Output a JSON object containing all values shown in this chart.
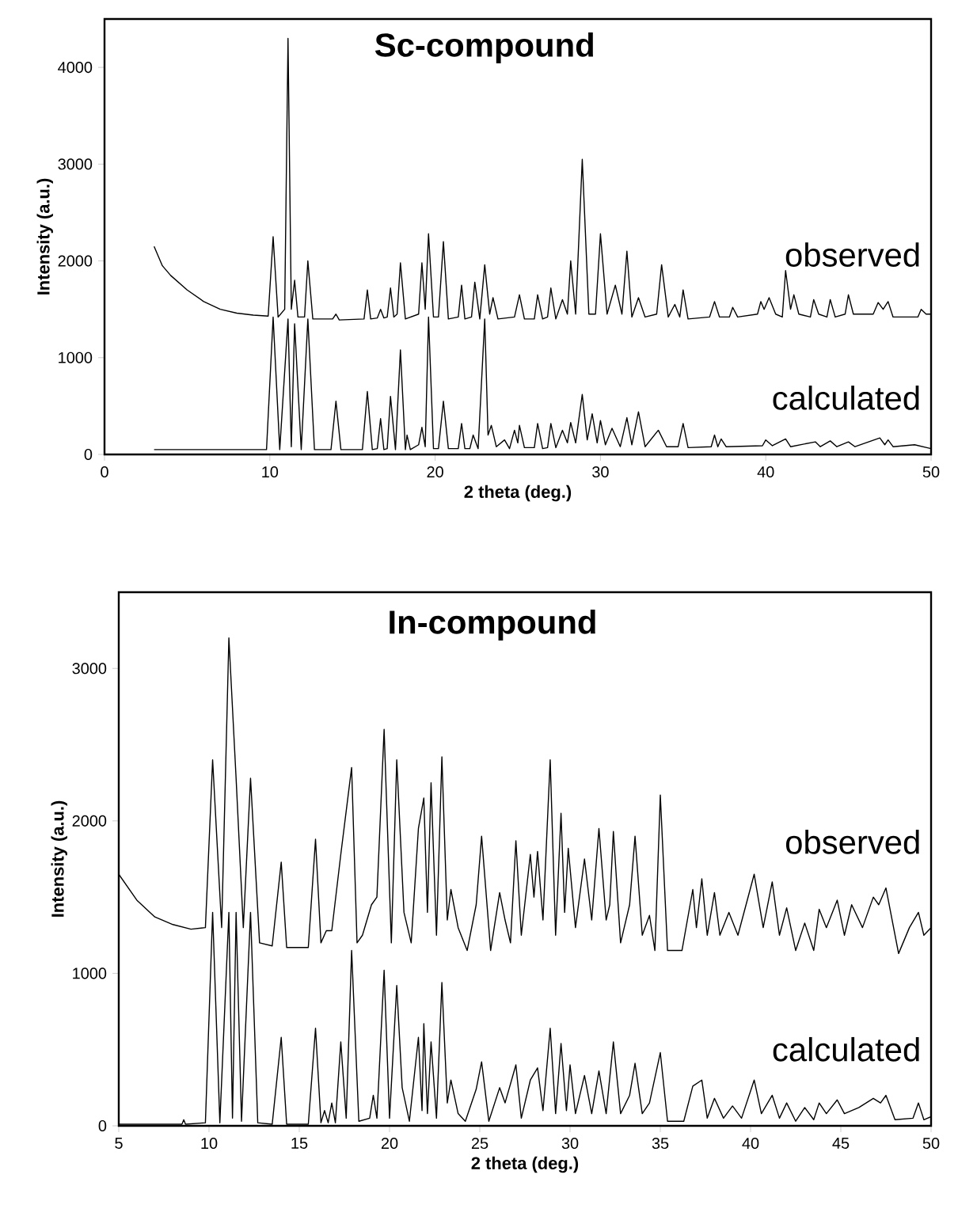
{
  "chart_data": [
    {
      "type": "line",
      "title": "Sc-compound",
      "xlabel": "2 theta (deg.)",
      "ylabel": "Intensity (a.u.)",
      "xlim": [
        0,
        50
      ],
      "ylim": [
        0,
        4500
      ],
      "xticks": [
        0,
        10,
        20,
        30,
        40,
        50
      ],
      "yticks": [
        0,
        1000,
        2000,
        3000,
        4000
      ],
      "series": [
        {
          "name": "observed",
          "color": "#000000",
          "x": [
            3,
            3.5,
            4,
            5,
            6,
            7,
            8,
            9,
            9.9,
            10.2,
            10.5,
            10.9,
            11.1,
            11.3,
            11.5,
            11.7,
            12.1,
            12.3,
            12.6,
            13.8,
            14,
            14.2,
            15.7,
            15.9,
            16.1,
            16.5,
            16.7,
            16.9,
            17.1,
            17.3,
            17.5,
            17.7,
            17.9,
            18.2,
            19,
            19.2,
            19.4,
            19.6,
            19.9,
            20.2,
            20.5,
            20.8,
            21.4,
            21.6,
            21.8,
            22.2,
            22.4,
            22.7,
            23,
            23.3,
            23.5,
            23.8,
            24.8,
            25.1,
            25.4,
            26,
            26.2,
            26.5,
            26.8,
            27,
            27.3,
            27.7,
            28,
            28.2,
            28.5,
            28.9,
            29.3,
            29.7,
            30,
            30.4,
            30.9,
            31.3,
            31.6,
            31.9,
            32.3,
            32.7,
            33.4,
            33.7,
            34.1,
            34.5,
            34.8,
            35,
            35.3,
            36.6,
            36.9,
            37.2,
            37.8,
            38,
            38.3,
            39.5,
            39.7,
            39.9,
            40.2,
            40.6,
            41,
            41.2,
            41.5,
            41.7,
            42,
            42.7,
            42.9,
            43.2,
            43.7,
            43.9,
            44.2,
            44.8,
            45,
            45.3,
            46.5,
            46.8,
            47.1,
            47.4,
            47.7,
            49.2,
            49.4,
            49.7,
            50
          ],
          "values": [
            2150,
            1950,
            1850,
            1700,
            1580,
            1500,
            1460,
            1440,
            1430,
            2250,
            1420,
            1500,
            4300,
            1500,
            1800,
            1420,
            1420,
            2000,
            1400,
            1400,
            1450,
            1390,
            1400,
            1700,
            1400,
            1410,
            1500,
            1410,
            1420,
            1720,
            1420,
            1450,
            1980,
            1400,
            1450,
            1980,
            1500,
            2280,
            1420,
            1420,
            2200,
            1400,
            1420,
            1750,
            1400,
            1420,
            1780,
            1400,
            1960,
            1450,
            1620,
            1400,
            1420,
            1650,
            1400,
            1400,
            1650,
            1400,
            1420,
            1720,
            1400,
            1600,
            1450,
            2000,
            1450,
            3050,
            1450,
            1450,
            2280,
            1450,
            1750,
            1450,
            2100,
            1420,
            1620,
            1420,
            1450,
            1960,
            1420,
            1550,
            1420,
            1700,
            1400,
            1420,
            1580,
            1420,
            1420,
            1520,
            1420,
            1450,
            1580,
            1500,
            1620,
            1450,
            1420,
            1900,
            1500,
            1650,
            1450,
            1420,
            1600,
            1450,
            1420,
            1600,
            1420,
            1450,
            1650,
            1450,
            1450,
            1570,
            1500,
            1580,
            1420,
            1420,
            1500,
            1450,
            1450
          ]
        },
        {
          "name": "calculated",
          "color": "#000000",
          "x": [
            3,
            9.8,
            10.2,
            10.6,
            11.1,
            11.3,
            11.5,
            11.9,
            12.3,
            12.7,
            13.7,
            14,
            14.3,
            15.6,
            15.9,
            16.2,
            16.5,
            16.7,
            16.9,
            17.1,
            17.3,
            17.6,
            17.9,
            18.2,
            18.3,
            18.5,
            19,
            19.2,
            19.4,
            19.6,
            19.9,
            20.2,
            20.5,
            20.8,
            21.4,
            21.6,
            21.8,
            22.1,
            22.3,
            22.6,
            23,
            23.2,
            23.4,
            23.7,
            24.2,
            24.5,
            24.8,
            25,
            25.1,
            25.4,
            26,
            26.2,
            26.5,
            26.8,
            27,
            27.3,
            27.7,
            28,
            28.2,
            28.5,
            28.9,
            29.2,
            29.5,
            29.8,
            30,
            30.3,
            30.7,
            31.2,
            31.6,
            31.9,
            32.3,
            32.7,
            33.5,
            34,
            34.7,
            35,
            35.3,
            36.7,
            36.9,
            37.1,
            37.3,
            37.6,
            39.8,
            40,
            40.4,
            41.2,
            41.5,
            43,
            43.3,
            43.9,
            44.3,
            45,
            45.4,
            46.9,
            47.2,
            47.4,
            47.7,
            49,
            50
          ],
          "values": [
            50,
            50,
            1420,
            50,
            1400,
            80,
            1350,
            50,
            1400,
            50,
            50,
            550,
            50,
            50,
            650,
            50,
            60,
            370,
            50,
            60,
            600,
            50,
            1080,
            50,
            200,
            50,
            100,
            280,
            80,
            1420,
            60,
            60,
            550,
            60,
            60,
            320,
            60,
            60,
            200,
            60,
            1400,
            200,
            300,
            80,
            150,
            60,
            250,
            120,
            300,
            70,
            70,
            320,
            60,
            70,
            320,
            70,
            250,
            120,
            330,
            120,
            620,
            150,
            420,
            120,
            350,
            100,
            270,
            80,
            380,
            100,
            440,
            80,
            250,
            80,
            80,
            320,
            70,
            80,
            200,
            80,
            160,
            80,
            90,
            150,
            90,
            160,
            80,
            130,
            80,
            140,
            80,
            130,
            80,
            170,
            100,
            150,
            80,
            100,
            60
          ]
        }
      ]
    },
    {
      "type": "line",
      "title": "In-compound",
      "xlabel": "2 theta (deg.)",
      "ylabel": "Intensity (a.u.)",
      "xlim": [
        5,
        50
      ],
      "ylim": [
        0,
        3500
      ],
      "xticks": [
        5,
        10,
        15,
        20,
        25,
        30,
        35,
        40,
        45,
        50
      ],
      "yticks": [
        0,
        1000,
        2000,
        3000
      ],
      "series": [
        {
          "name": "observed",
          "color": "#000000",
          "x": [
            5,
            6,
            7,
            8,
            9,
            9.8,
            10.2,
            10.7,
            11.1,
            11.5,
            11.9,
            12.3,
            12.8,
            13.5,
            14,
            14.3,
            15.5,
            15.9,
            16.2,
            16.5,
            16.8,
            17.3,
            17.9,
            18.2,
            18.5,
            19,
            19.3,
            19.7,
            20.1,
            20.4,
            20.8,
            21.2,
            21.6,
            21.9,
            22.1,
            22.3,
            22.6,
            22.9,
            23.2,
            23.4,
            23.8,
            24.3,
            24.8,
            25.1,
            25.6,
            26.1,
            26.4,
            26.7,
            27,
            27.3,
            27.8,
            28,
            28.2,
            28.5,
            28.9,
            29.2,
            29.5,
            29.7,
            29.9,
            30.3,
            30.8,
            31.2,
            31.6,
            32,
            32.2,
            32.4,
            32.8,
            33.3,
            33.6,
            34,
            34.4,
            34.7,
            35,
            35.4,
            36.2,
            36.8,
            37,
            37.3,
            37.6,
            38,
            38.3,
            38.8,
            39.3,
            40.2,
            40.7,
            41.2,
            41.6,
            42,
            42.5,
            43,
            43.5,
            43.8,
            44.2,
            44.8,
            45.2,
            45.6,
            46.2,
            46.8,
            47.1,
            47.5,
            48.2,
            48.8,
            49.3,
            49.6,
            50
          ],
          "values": [
            1650,
            1480,
            1370,
            1320,
            1290,
            1300,
            2400,
            1300,
            3200,
            2280,
            1300,
            2280,
            1200,
            1180,
            1730,
            1170,
            1170,
            1880,
            1200,
            1280,
            1280,
            1780,
            2350,
            1200,
            1250,
            1450,
            1500,
            2600,
            1200,
            2400,
            1400,
            1200,
            1950,
            2150,
            1400,
            2250,
            1250,
            2420,
            1350,
            1550,
            1300,
            1150,
            1450,
            1900,
            1150,
            1530,
            1350,
            1200,
            1870,
            1250,
            1780,
            1500,
            1800,
            1350,
            2400,
            1250,
            2050,
            1400,
            1820,
            1300,
            1750,
            1350,
            1950,
            1350,
            1450,
            1930,
            1200,
            1450,
            1900,
            1250,
            1380,
            1150,
            2170,
            1150,
            1150,
            1550,
            1300,
            1620,
            1250,
            1530,
            1250,
            1400,
            1250,
            1650,
            1300,
            1600,
            1250,
            1430,
            1150,
            1330,
            1150,
            1420,
            1300,
            1480,
            1250,
            1450,
            1300,
            1500,
            1450,
            1560,
            1130,
            1300,
            1400,
            1250,
            1300
          ]
        },
        {
          "name": "calculated",
          "color": "#000000",
          "x": [
            5,
            8.5,
            8.6,
            8.7,
            9.8,
            10.2,
            10.6,
            11.1,
            11.3,
            11.5,
            11.8,
            12.3,
            12.7,
            13.5,
            14,
            14.3,
            15.5,
            15.9,
            16.2,
            16.4,
            16.6,
            16.8,
            17,
            17.3,
            17.6,
            17.9,
            18.3,
            18.9,
            19.1,
            19.3,
            19.7,
            20,
            20.4,
            20.7,
            21.1,
            21.6,
            21.8,
            21.9,
            22.1,
            22.3,
            22.6,
            22.9,
            23.2,
            23.4,
            23.8,
            24.2,
            24.8,
            25.1,
            25.5,
            26.1,
            26.4,
            27,
            27.3,
            27.8,
            28.2,
            28.5,
            28.9,
            29.2,
            29.5,
            29.8,
            30,
            30.3,
            30.8,
            31.2,
            31.6,
            32,
            32.4,
            32.8,
            33.3,
            33.6,
            34,
            34.4,
            35,
            35.4,
            36.3,
            36.8,
            37.3,
            37.6,
            38,
            38.5,
            39,
            39.5,
            40.2,
            40.6,
            41.2,
            41.6,
            42,
            42.5,
            43,
            43.5,
            43.8,
            44.2,
            44.8,
            45.2,
            46,
            46.8,
            47.2,
            47.5,
            48,
            49,
            49.3,
            49.6,
            50
          ],
          "values": [
            10,
            10,
            40,
            10,
            20,
            1400,
            20,
            1400,
            50,
            1400,
            30,
            1400,
            20,
            10,
            580,
            10,
            10,
            640,
            20,
            100,
            20,
            150,
            20,
            550,
            50,
            1150,
            30,
            50,
            200,
            50,
            1020,
            50,
            920,
            250,
            30,
            580,
            100,
            670,
            80,
            550,
            50,
            940,
            150,
            300,
            80,
            30,
            240,
            420,
            30,
            250,
            150,
            400,
            50,
            300,
            380,
            100,
            640,
            80,
            540,
            100,
            400,
            80,
            330,
            80,
            360,
            80,
            550,
            80,
            200,
            410,
            80,
            150,
            480,
            30,
            30,
            260,
            300,
            50,
            180,
            50,
            130,
            50,
            300,
            80,
            200,
            50,
            150,
            30,
            120,
            40,
            150,
            80,
            170,
            80,
            120,
            180,
            150,
            200,
            40,
            50,
            150,
            40,
            60
          ]
        }
      ]
    }
  ]
}
